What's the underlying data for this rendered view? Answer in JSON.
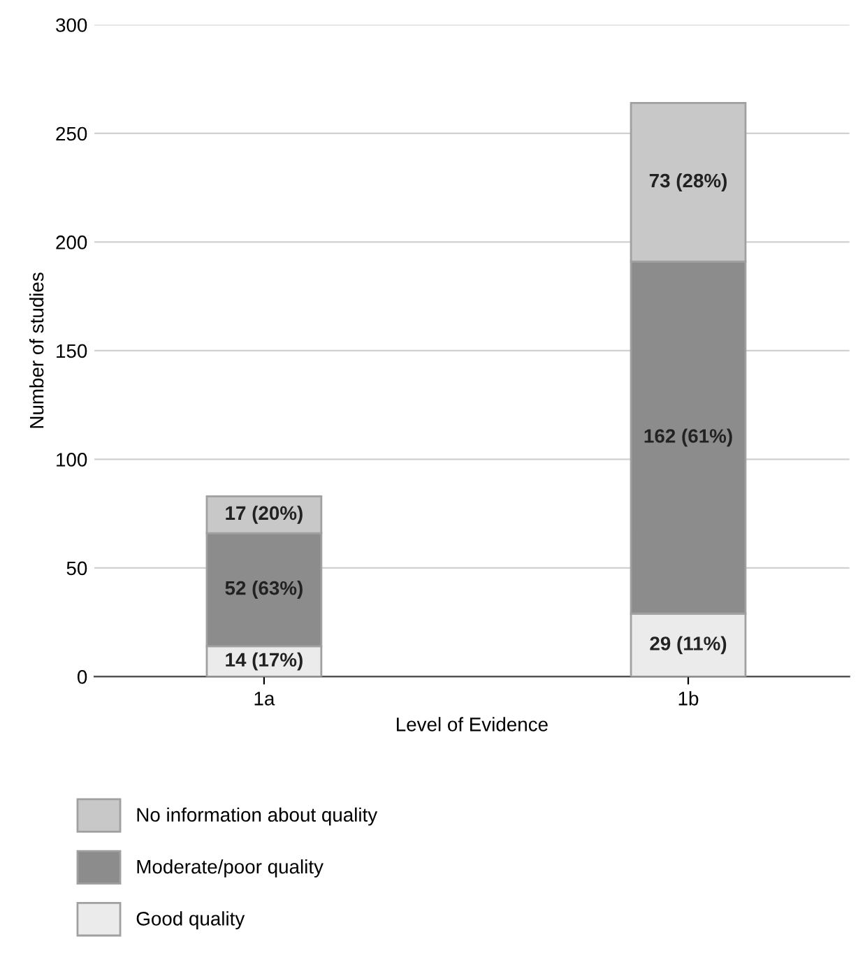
{
  "chart_data": {
    "type": "bar",
    "stacked": true,
    "xlabel": "Level of Evidence",
    "ylabel": "Number of studies",
    "categories": [
      "1a",
      "1b"
    ],
    "series": [
      {
        "name": "Good quality",
        "color": "#ebebeb",
        "values": [
          14,
          29
        ],
        "value_labels": [
          "14 (17%)",
          "29 (11%)"
        ]
      },
      {
        "name": "Moderate/poor quality",
        "color": "#8c8c8c",
        "values": [
          52,
          162
        ],
        "value_labels": [
          "52 (63%)",
          "162 (61%)"
        ]
      },
      {
        "name": "No information about quality",
        "color": "#c8c8c8",
        "values": [
          17,
          73
        ],
        "value_labels": [
          "17 (20%)",
          "73 (28%)"
        ]
      }
    ],
    "ylim": [
      0,
      300
    ],
    "yticks": [
      0,
      50,
      100,
      150,
      200,
      250,
      300
    ],
    "grid": "y",
    "legend": "bottom"
  }
}
